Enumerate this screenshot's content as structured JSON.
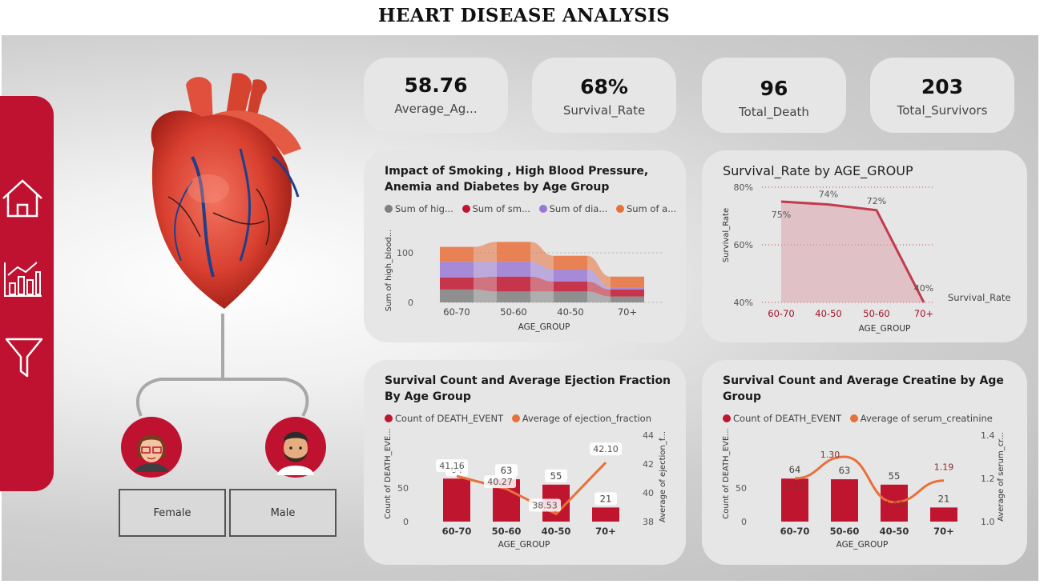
{
  "title": "HEART DISEASE ANALYSIS",
  "nav": {
    "home_icon": "home-icon",
    "chart_icon": "bar-chart-icon",
    "filter_icon": "filter-icon"
  },
  "kpis": [
    {
      "value": "58.76",
      "label": "Average_Ag..."
    },
    {
      "value": "68%",
      "label": "Survival_Rate"
    },
    {
      "value": "96",
      "label": "Total_Death"
    },
    {
      "value": "203",
      "label": "Total_Survivors"
    }
  ],
  "gender": {
    "female": "Female",
    "male": "Male"
  },
  "colors": {
    "brand": "#bf1230",
    "orange": "#e8703a",
    "gray": "#7f7f7f",
    "purple": "#9a78d4",
    "red": "#c0152f"
  },
  "chart_data": [
    {
      "type": "ribbon",
      "title": "Impact of Smoking , High Blood Pressure, Anemia and Diabetes by Age Group",
      "legend": [
        "Sum of hig...",
        "Sum of sm...",
        "Sum of dia...",
        "Sum of a..."
      ],
      "series": [
        {
          "name": "Sum of high_blood_pressure",
          "values": [
            26,
            22,
            22,
            12
          ]
        },
        {
          "name": "Sum of smoking",
          "values": [
            24,
            30,
            20,
            14
          ]
        },
        {
          "name": "Sum of diabetes",
          "values": [
            32,
            30,
            24,
            4
          ]
        },
        {
          "name": "Sum of anaemia",
          "values": [
            30,
            40,
            28,
            22
          ]
        }
      ],
      "categories": [
        "60-70",
        "50-60",
        "40-50",
        "70+"
      ],
      "xlabel": "AGE_GROUP",
      "ylabel": "Sum of high_blood...",
      "yticks": [
        "0",
        "100"
      ]
    },
    {
      "type": "area",
      "title": "Survival_Rate by AGE_GROUP",
      "categories": [
        "60-70",
        "40-50",
        "50-60",
        "70+"
      ],
      "values": [
        75,
        74,
        72,
        40
      ],
      "labels": [
        "75%",
        "74%",
        "72%",
        "40%"
      ],
      "xlabel": "AGE_GROUP",
      "ylabel": "Survival_Rate",
      "yticks": [
        "80%",
        "60%",
        "40%"
      ],
      "ylim": [
        40,
        80
      ],
      "series_label": "Survival_Rate"
    },
    {
      "type": "bar",
      "title": "Survival Count and Average Ejection Fraction By Age Group",
      "legend": [
        "Count of DEATH_EVENT",
        "Average of ejection_fraction"
      ],
      "categories": [
        "60-70",
        "50-60",
        "40-50",
        "70+"
      ],
      "bars": [
        64,
        63,
        55,
        21
      ],
      "line": [
        41.16,
        40.27,
        38.53,
        42.1
      ],
      "line_labels": [
        "41.16",
        "40.27",
        "38.53",
        "42.10"
      ],
      "xlabel": "AGE_GROUP",
      "ylabel": "Count of DEATH_EVE...",
      "y2label": "Average of ejection_f...",
      "yticks": [
        "0",
        "50"
      ],
      "y2ticks": [
        "38",
        "40",
        "42",
        "44"
      ],
      "y2lim": [
        38,
        44
      ]
    },
    {
      "type": "bar",
      "title": "Survival Count and Average Creatine by Age Group",
      "legend": [
        "Count of DEATH_EVENT",
        "Average of serum_creatinine"
      ],
      "categories": [
        "60-70",
        "50-60",
        "40-50",
        "70+"
      ],
      "bars": [
        64,
        63,
        55,
        21
      ],
      "line": [
        1.2,
        1.3,
        1.09,
        1.19
      ],
      "line_labels": [
        "1.20",
        "1.30",
        "1.09",
        "1.19"
      ],
      "xlabel": "AGE_GROUP",
      "ylabel": "Count of DEATH_EVE...",
      "y2label": "Average of serum_cr...",
      "yticks": [
        "0",
        "50"
      ],
      "y2ticks": [
        "1.0",
        "1.2",
        "1.4"
      ],
      "y2lim": [
        1.0,
        1.4
      ]
    }
  ]
}
